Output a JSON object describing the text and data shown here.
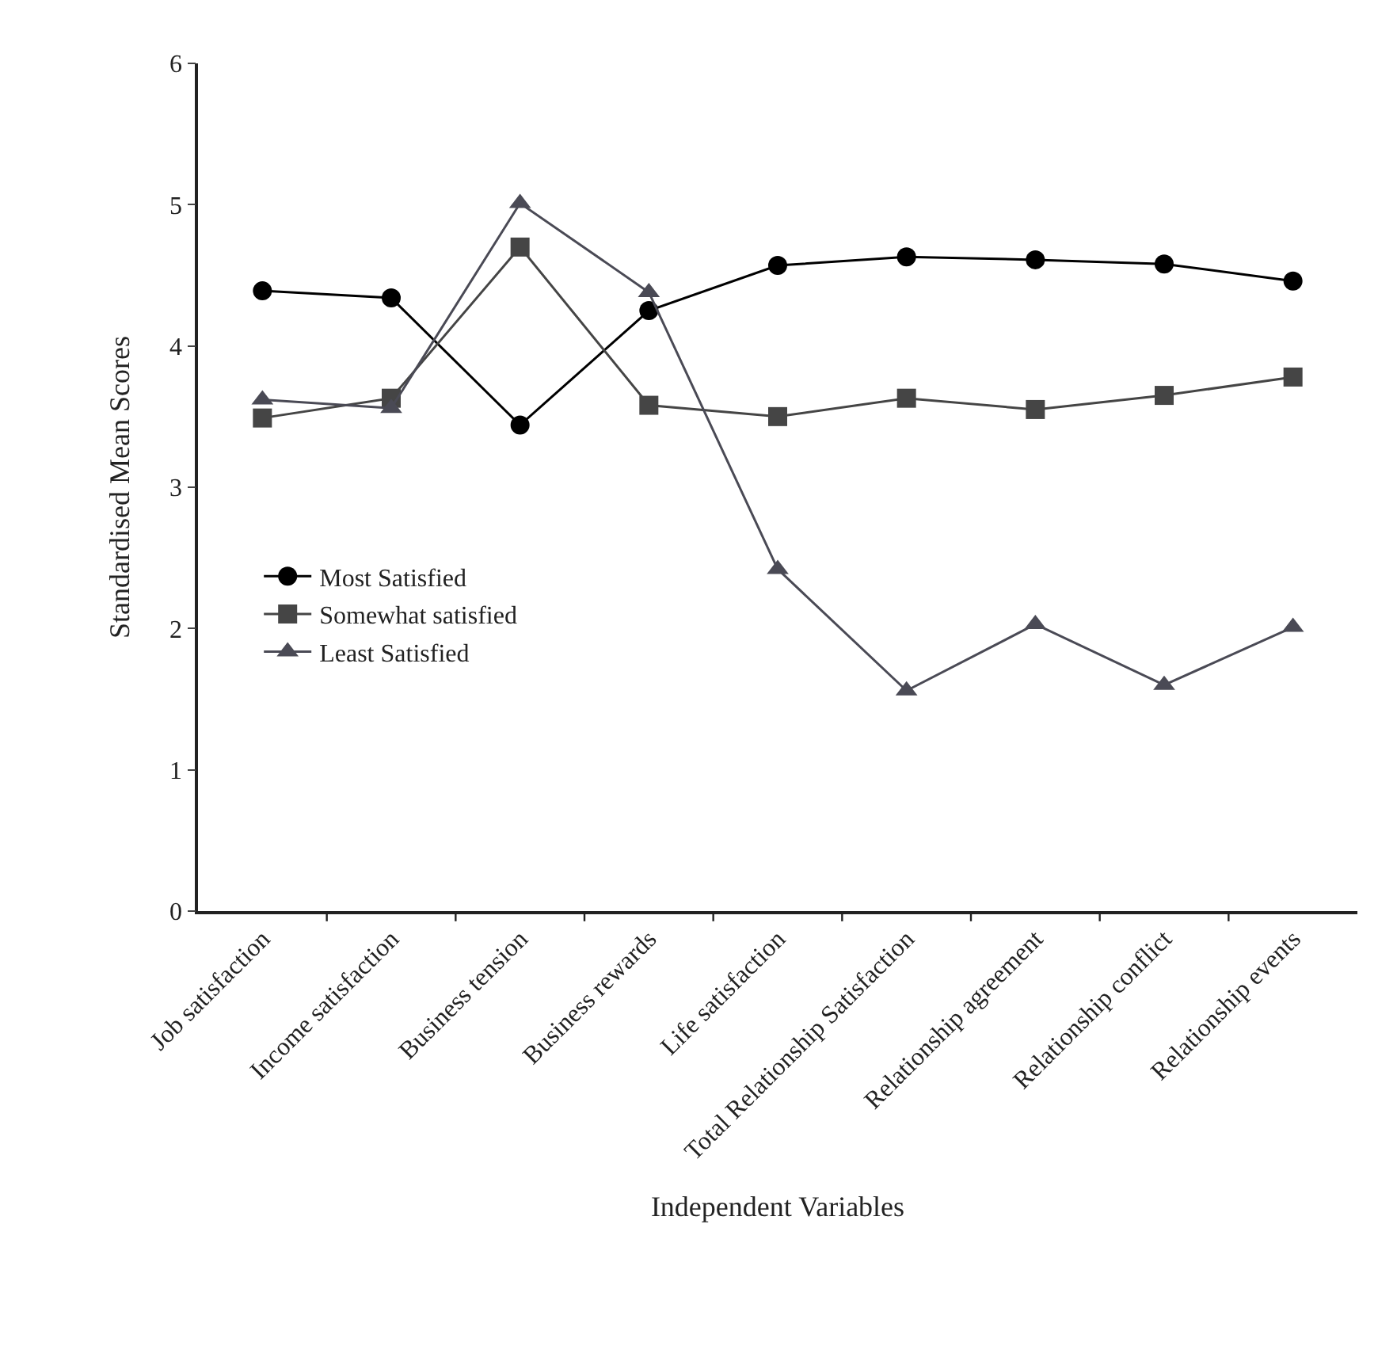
{
  "chart_data": {
    "type": "line",
    "xlabel": "Independent Variables",
    "ylabel": "Standardised Mean Scores",
    "categories": [
      "Job satisfaction",
      "Income satisfaction",
      "Business tension",
      "Business rewards",
      "Life satisfaction",
      "Total Relationship Satisfaction",
      "Relationship agreement",
      "Relationship conflict",
      "Relationship events"
    ],
    "series": [
      {
        "name": "Most Satisfied",
        "color": "#000000",
        "marker": "circle",
        "values": [
          4.39,
          4.34,
          3.44,
          4.25,
          4.57,
          4.63,
          4.61,
          4.58,
          4.46
        ]
      },
      {
        "name": "Somewhat satisfied",
        "color": "#454545",
        "marker": "square",
        "values": [
          3.49,
          3.63,
          4.7,
          3.58,
          3.5,
          3.63,
          3.55,
          3.65,
          3.78
        ]
      },
      {
        "name": "Least Satisfied",
        "color": "#4a4a55",
        "marker": "triangle",
        "values": [
          3.62,
          3.56,
          5.01,
          4.38,
          2.42,
          1.56,
          2.03,
          1.6,
          2.01
        ]
      }
    ],
    "ylim": [
      0,
      6
    ],
    "yticks": [
      0,
      1,
      2,
      3,
      4,
      5,
      6
    ],
    "legend": "left",
    "line_style": "solid"
  }
}
